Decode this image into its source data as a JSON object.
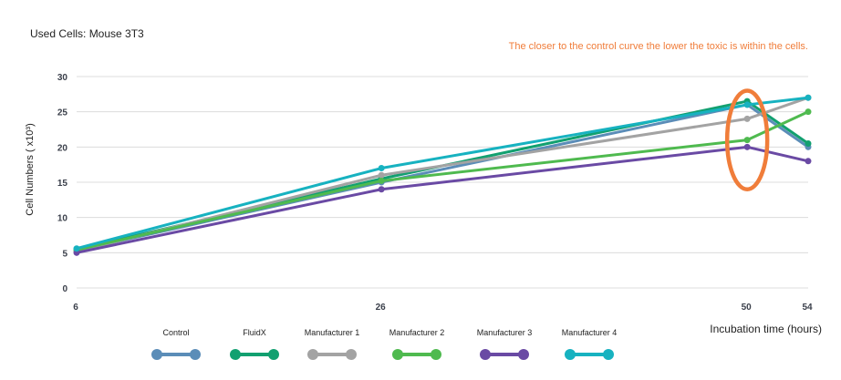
{
  "chart_data": {
    "type": "line",
    "subtitle": "Used Cells: Mouse 3T3",
    "annotation": "The closer to the control curve the lower the toxic is within the cells.",
    "xlabel": "Incubation time (hours)",
    "ylabel": "Cell Numbers ( x10³)",
    "x": [
      6,
      26,
      50,
      54
    ],
    "x_tick_labels": [
      "6",
      "26",
      "50",
      "54"
    ],
    "y_ticks": [
      0,
      5,
      10,
      15,
      20,
      25,
      30
    ],
    "y_tick_labels": [
      "0",
      "5",
      "10",
      "15",
      "20",
      "25",
      "30"
    ],
    "ylim": [
      0,
      30
    ],
    "grid": true,
    "highlight": {
      "x": 50,
      "y_range": [
        14,
        28
      ],
      "color": "#f07d3a"
    },
    "series": [
      {
        "name": "Control",
        "color": "#5b8db8",
        "values": [
          5.3,
          15,
          26,
          20
        ]
      },
      {
        "name": "FluidX",
        "color": "#12a070",
        "values": [
          5.5,
          15.5,
          26.5,
          20.5
        ]
      },
      {
        "name": "Manufacturer 1",
        "color": "#a3a3a3",
        "values": [
          5.2,
          16,
          24,
          27
        ]
      },
      {
        "name": "Manufacturer 2",
        "color": "#4fba4f",
        "values": [
          5.4,
          15.2,
          21,
          25
        ]
      },
      {
        "name": "Manufacturer 3",
        "color": "#6a4aa4",
        "values": [
          5.0,
          14,
          20,
          18
        ]
      },
      {
        "name": "Manufacturer 4",
        "color": "#17b2c0",
        "values": [
          5.6,
          17,
          26,
          27
        ]
      }
    ]
  }
}
